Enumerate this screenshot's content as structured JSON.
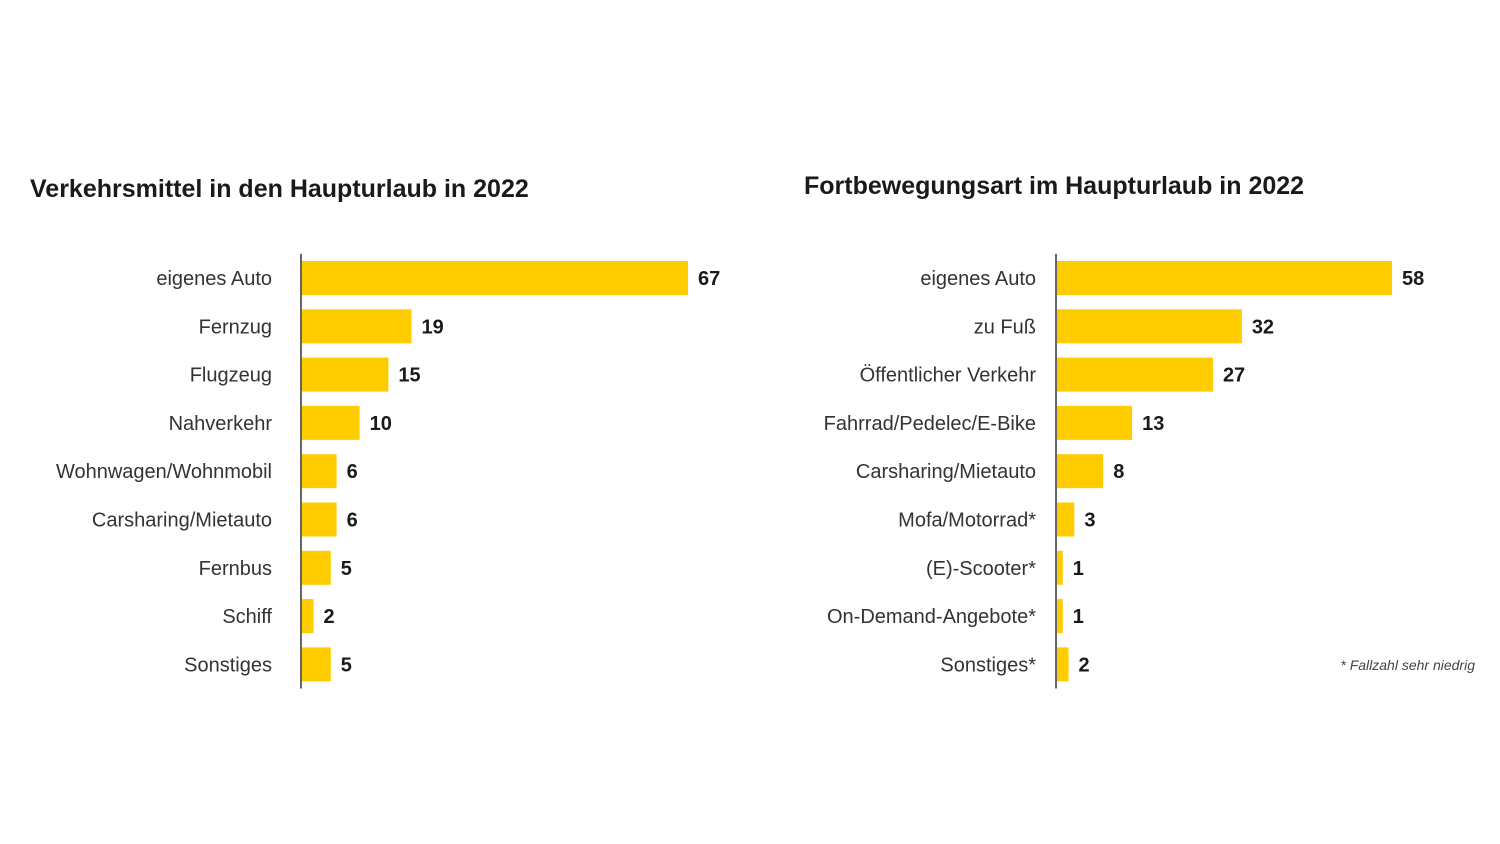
{
  "colors": {
    "bar": "#FFCC00",
    "text": "#1a1a1a",
    "axis": "#333333"
  },
  "chart_data": [
    {
      "type": "bar",
      "orientation": "horizontal",
      "title": "Verkehrsmittel in den Haupturlaub in 2022",
      "categories": [
        "eigenes Auto",
        "Fernzug",
        "Flugzeug",
        "Nahverkehr",
        "Wohnwagen/Wohnmobil",
        "Carsharing/Mietauto",
        "Fernbus",
        "Schiff",
        "Sonstiges"
      ],
      "values": [
        67,
        19,
        15,
        10,
        6,
        6,
        5,
        2,
        5
      ],
      "xlim": [
        0,
        67
      ],
      "grid": false,
      "data_labels": true
    },
    {
      "type": "bar",
      "orientation": "horizontal",
      "title": "Fortbewegungsart im Haupturlaub in 2022",
      "categories": [
        "eigenes Auto",
        "zu Fuß",
        "Öffentlicher Verkehr",
        "Fahrrad/Pedelec/E-Bike",
        "Carsharing/Mietauto",
        "Mofa/Motorrad*",
        "(E)-Scooter*",
        "On-Demand-Angebote*",
        "Sonstiges*"
      ],
      "values": [
        58,
        32,
        27,
        13,
        8,
        3,
        1,
        1,
        2
      ],
      "xlim": [
        0,
        58
      ],
      "grid": false,
      "data_labels": true,
      "footnote": "* Fallzahl sehr niedrig"
    }
  ]
}
